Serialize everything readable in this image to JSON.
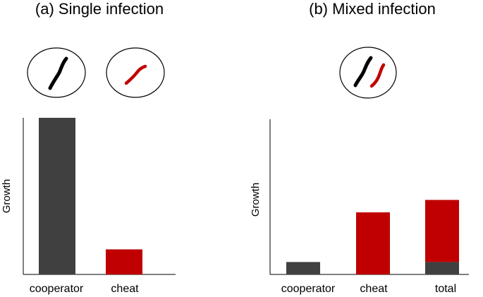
{
  "chart_data": [
    {
      "type": "bar",
      "title": "(a) Single infection",
      "y_label": "Growth",
      "categories": [
        "cooperator",
        "cheat"
      ],
      "values": [
        100,
        16
      ],
      "colors": [
        "#404040",
        "#c00000"
      ],
      "ylim": [
        0,
        100
      ]
    },
    {
      "type": "stacked_bar",
      "title": "(b) Mixed infection",
      "y_label": "Growth",
      "categories": [
        "cooperator",
        "cheat",
        "total"
      ],
      "series": [
        {
          "color": "#404040",
          "values": [
            8,
            null,
            8
          ]
        },
        {
          "color": "#c00000",
          "values": [
            null,
            40,
            40
          ]
        }
      ],
      "ylim": [
        0,
        100
      ]
    }
  ]
}
